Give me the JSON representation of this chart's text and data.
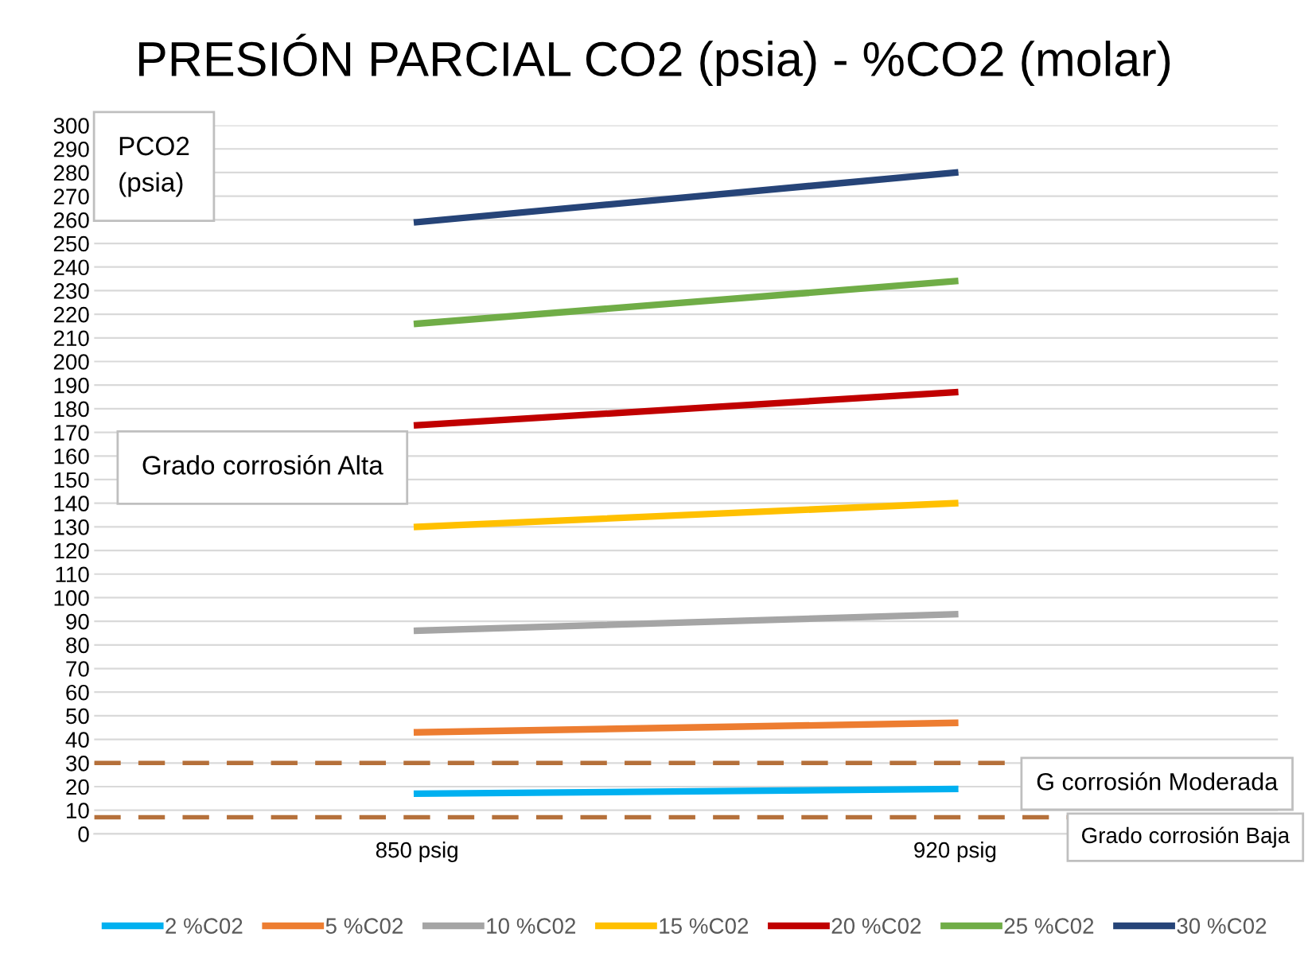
{
  "chart_data": {
    "type": "line",
    "title": "PRESIÓN PARCIAL CO2 (psia) - %CO2 (molar)",
    "ylabel": "PCO2\n(psia)",
    "categories": [
      "850 psig",
      "920 psig"
    ],
    "series": [
      {
        "name": "2 %C02",
        "color": "#00b0f0",
        "values": [
          17,
          19
        ]
      },
      {
        "name": "5 %C02",
        "color": "#ed7d31",
        "values": [
          43,
          47
        ]
      },
      {
        "name": "10 %C02",
        "color": "#a5a5a5",
        "values": [
          86,
          93
        ]
      },
      {
        "name": "15 %C02",
        "color": "#ffc000",
        "values": [
          130,
          140
        ]
      },
      {
        "name": "20 %C02",
        "color": "#c00000",
        "values": [
          173,
          187
        ]
      },
      {
        "name": "25 %C02",
        "color": "#70ad47",
        "values": [
          216,
          234
        ]
      },
      {
        "name": "30 %C02",
        "color": "#264478",
        "values": [
          259,
          280
        ]
      }
    ],
    "ylim": [
      0,
      300
    ],
    "yticks": [
      0,
      10,
      20,
      30,
      40,
      50,
      60,
      70,
      80,
      90,
      100,
      110,
      120,
      130,
      140,
      150,
      160,
      170,
      180,
      190,
      200,
      210,
      220,
      230,
      240,
      250,
      260,
      270,
      280,
      290,
      300
    ],
    "grid": "y",
    "legend": "bottom",
    "marker": "none",
    "line_style": "solid",
    "ref_lines": [
      {
        "axis": "y",
        "value": 30,
        "label": "G corrosión Moderada",
        "color": "#b5703a",
        "line_style": "dashed"
      },
      {
        "axis": "y",
        "value": 7,
        "label": "Grado corrosión Baja",
        "color": "#b5703a",
        "line_style": "dashed"
      }
    ],
    "annotations": [
      "Grado corrosión Alta"
    ]
  }
}
